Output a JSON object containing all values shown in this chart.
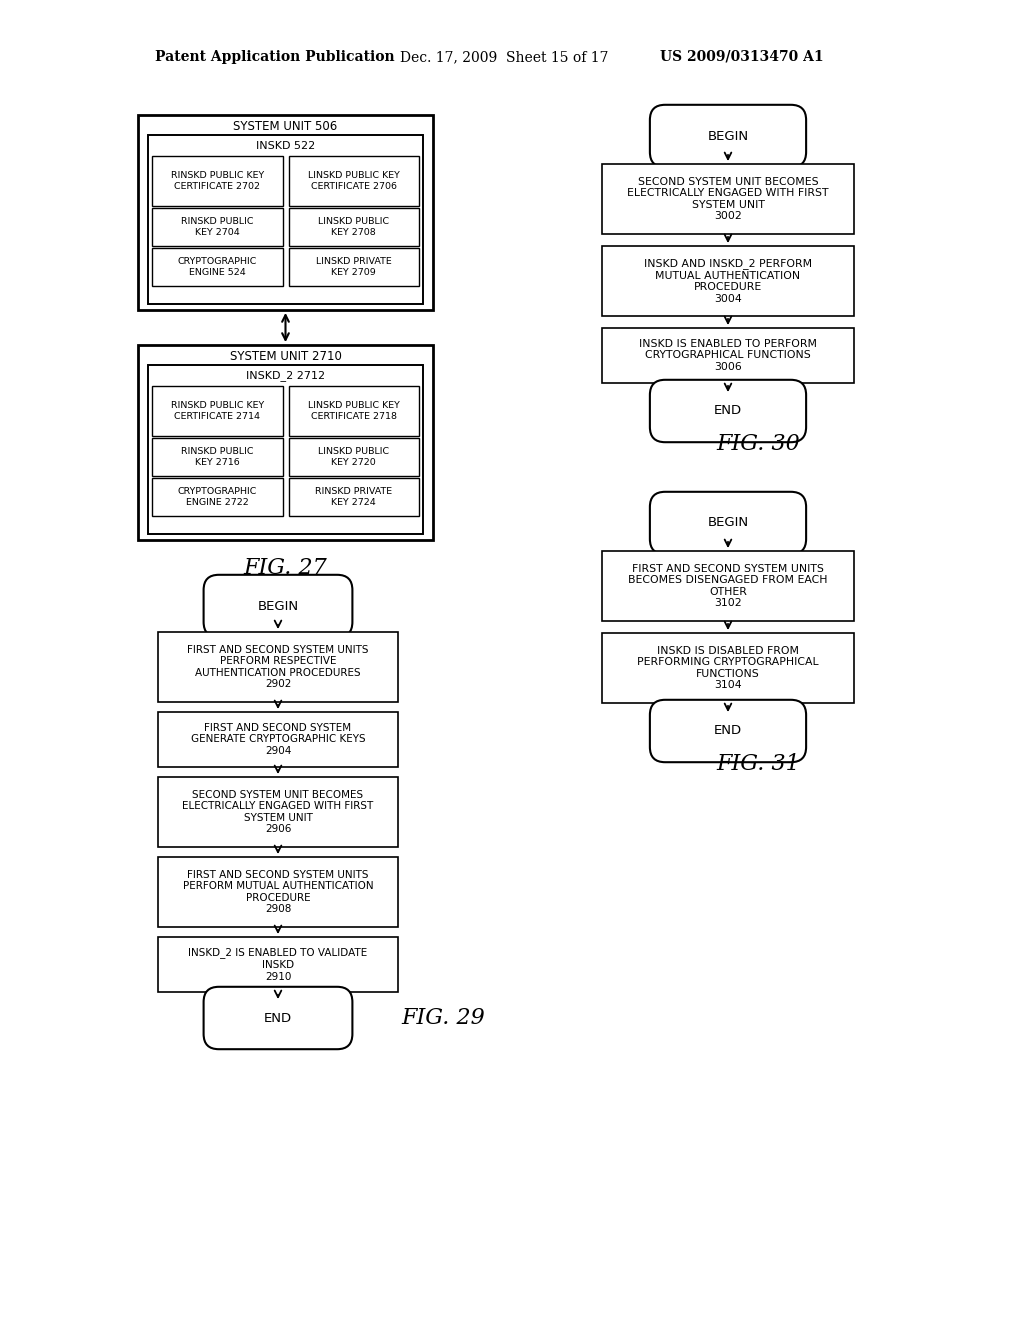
{
  "bg_color": "#ffffff",
  "header_left": "Patent Application Publication",
  "header_mid": "Dec. 17, 2009  Sheet 15 of 17",
  "header_right": "US 2009/0313470 A1",
  "fig27": {
    "title": "FIG. 27",
    "su506_label": "SYSTEM UNIT 506",
    "inskd522_label": "INSKD 522",
    "rinskd_cert_2702": "RINSKD PUBLIC KEY\nCERTIFICATE 2702",
    "linskd_cert_2706": "LINSKD PUBLIC KEY\nCERTIFICATE 2706",
    "rinskd_key_2704": "RINSKD PUBLIC\nKEY 2704",
    "linskd_key_2708": "LINSKD PUBLIC\nKEY 2708",
    "crypto_524": "CRYPTOGRAPHIC\nENGINE 524",
    "linskd_priv_2709": "LINSKD PRIVATE\nKEY 2709",
    "su2710_label": "SYSTEM UNIT 2710",
    "inskd2_2712_label": "INSKD_2 2712",
    "rinskd_cert_2714": "RINSKD PUBLIC KEY\nCERTIFICATE 2714",
    "linskd_cert_2718": "LINSKD PUBLIC KEY\nCERTIFICATE 2718",
    "rinskd_key_2716": "RINSKD PUBLIC\nKEY 2716",
    "linskd_key_2720": "LINSKD PUBLIC\nKEY 2720",
    "crypto_2722": "CRYPTOGRAPHIC\nENGINE 2722",
    "rinskd_priv_2724": "RINSKD PRIVATE\nKEY 2724"
  },
  "fig29": {
    "title": "FIG. 29",
    "steps": [
      {
        "text": "BEGIN",
        "type": "stadium"
      },
      {
        "text": "FIRST AND SECOND SYSTEM UNITS\nPERFORM RESPECTIVE\nAUTHENTICATION PROCEDURES\n2902",
        "type": "rect"
      },
      {
        "text": "FIRST AND SECOND SYSTEM\nGENERATE CRYPTOGRAPHIC KEYS\n2904",
        "type": "rect"
      },
      {
        "text": "SECOND SYSTEM UNIT BECOMES\nELECTRICALLY ENGAGED WITH FIRST\nSYSTEM UNIT\n2906",
        "type": "rect"
      },
      {
        "text": "FIRST AND SECOND SYSTEM UNITS\nPERFORM MUTUAL AUTHENTICATION\nPROCEDURE\n2908",
        "type": "rect"
      },
      {
        "text": "INSKD_2 IS ENABLED TO VALIDATE\nINSKD\n2910",
        "type": "rect"
      },
      {
        "text": "END",
        "type": "stadium"
      }
    ]
  },
  "fig30": {
    "title": "FIG. 30",
    "steps": [
      {
        "text": "BEGIN",
        "type": "stadium"
      },
      {
        "text": "SECOND SYSTEM UNIT BECOMES\nELECTRICALLY ENGAGED WITH FIRST\nSYSTEM UNIT\n3002",
        "type": "rect"
      },
      {
        "text": "INSKD AND INSKD_2 PERFORM\nMUTUAL AUTHENTICATION\nPROCEDURE\n3004",
        "type": "rect"
      },
      {
        "text": "INSKD IS ENABLED TO PERFORM\nCRYTOGRAPHICAL FUNCTIONS\n3006",
        "type": "rect"
      },
      {
        "text": "END",
        "type": "stadium"
      }
    ]
  },
  "fig31": {
    "title": "FIG. 31",
    "steps": [
      {
        "text": "BEGIN",
        "type": "stadium"
      },
      {
        "text": "FIRST AND SECOND SYSTEM UNITS\nBECOMES DISENGAGED FROM EACH\nOTHER\n3102",
        "type": "rect"
      },
      {
        "text": "INSKD IS DISABLED FROM\nPERFORMING CRYPTOGRAPHICAL\nFUNCTIONS\n3104",
        "type": "rect"
      },
      {
        "text": "END",
        "type": "stadium"
      }
    ]
  }
}
